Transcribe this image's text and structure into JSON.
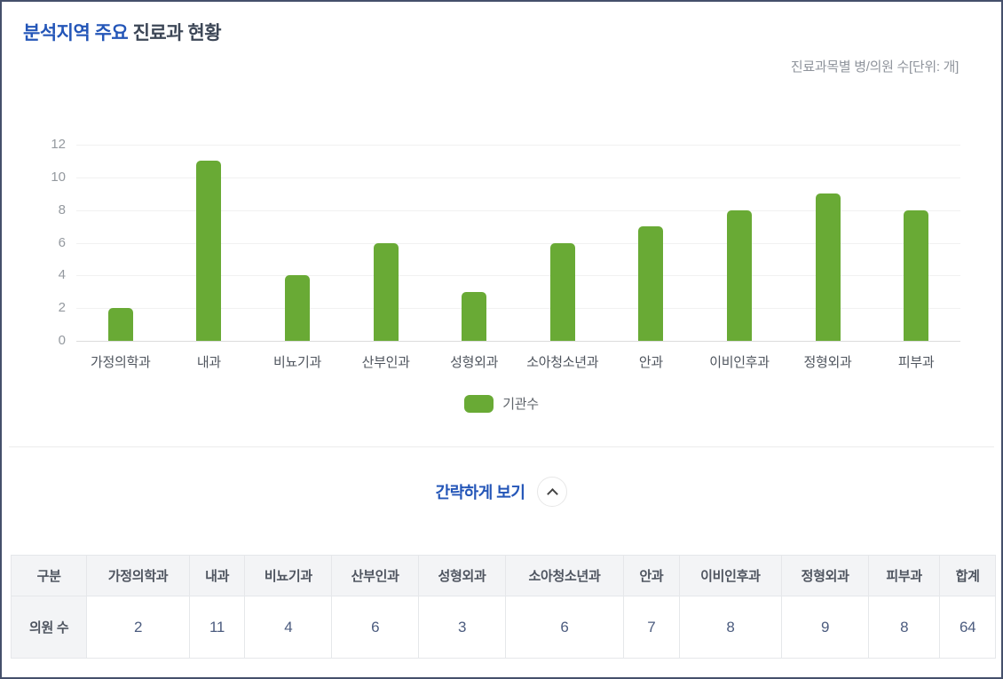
{
  "header": {
    "title_accent": "분석지역 주요",
    "title_rest": "진료과 현황",
    "unit_note": "진료과목별 병/의원 수[단위: 개]"
  },
  "toggle": {
    "label": "간략하게 보기",
    "chevron": "up"
  },
  "colors": {
    "bar_green": "#69aa35",
    "accent_blue": "#2456b8",
    "title_dark": "#3d4757"
  },
  "chart_data": {
    "type": "bar",
    "title": "분석지역 주요 진료과 현황",
    "subtitle": "진료과목별 병/의원 수[단위: 개]",
    "categories": [
      "가정의학과",
      "내과",
      "비뇨기과",
      "산부인과",
      "성형외과",
      "소아청소년과",
      "안과",
      "이비인후과",
      "정형외과",
      "피부과"
    ],
    "values": [
      2,
      11,
      4,
      6,
      3,
      6,
      7,
      8,
      9,
      8
    ],
    "series_name": "기관수",
    "xlabel": "",
    "ylabel": "",
    "ylim": [
      0,
      12
    ],
    "yticks": [
      0,
      2,
      4,
      6,
      8,
      10,
      12
    ],
    "grid": true,
    "legend_position": "bottom",
    "bar_color": "#69aa35"
  },
  "table": {
    "columns": [
      "구분",
      "가정의학과",
      "내과",
      "비뇨기과",
      "산부인과",
      "성형외과",
      "소아청소년과",
      "안과",
      "이비인후과",
      "정형외과",
      "피부과",
      "합계"
    ],
    "row_label": "의원 수",
    "row_values": [
      2,
      11,
      4,
      6,
      3,
      6,
      7,
      8,
      9,
      8,
      64
    ]
  }
}
